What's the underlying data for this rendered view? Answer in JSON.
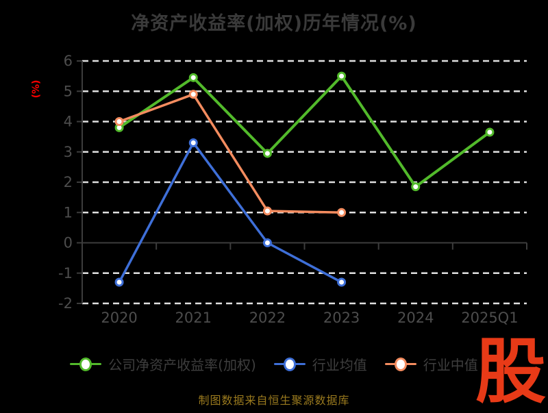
{
  "title": "净资产收益率(加权)历年情况(%)",
  "footer": "制图数据来自恒生聚源数据库",
  "watermark": "股",
  "colors": {
    "background": "#000000",
    "title": "#3a3a3a",
    "axis_label": "#4d4d4d",
    "axis_line": "#3d3d3d",
    "grid_line": "#e0e0e0",
    "y_unit": "#ff0000",
    "legend_text": "#3e3e3e",
    "footer": "#9a7a1e",
    "watermark": "#e83a17"
  },
  "chart_data": {
    "type": "line",
    "title": "净资产收益率(加权)历年情况(%)",
    "xlabel": "",
    "ylabel": "(%)",
    "categories": [
      "2020",
      "2021",
      "2022",
      "2023",
      "2024",
      "2025Q1"
    ],
    "series": [
      {
        "name": "公司净资产收益率(加权)",
        "color": "#52ba2b",
        "values": [
          3.8,
          5.45,
          2.95,
          5.5,
          1.85,
          3.65
        ]
      },
      {
        "name": "行业均值",
        "color": "#3e6fd8",
        "values": [
          -1.3,
          3.3,
          0,
          -1.3,
          null,
          null
        ]
      },
      {
        "name": "行业中值",
        "color": "#f48c5f",
        "values": [
          4.0,
          4.9,
          1.05,
          1.0,
          null,
          null
        ]
      }
    ],
    "ylim": [
      -2,
      6
    ],
    "ytick_step": 1,
    "grid": "horizontal dashed white lines, solid axis at 0",
    "legend_position": "bottom",
    "marker": "circle, white fill, colored ring"
  }
}
